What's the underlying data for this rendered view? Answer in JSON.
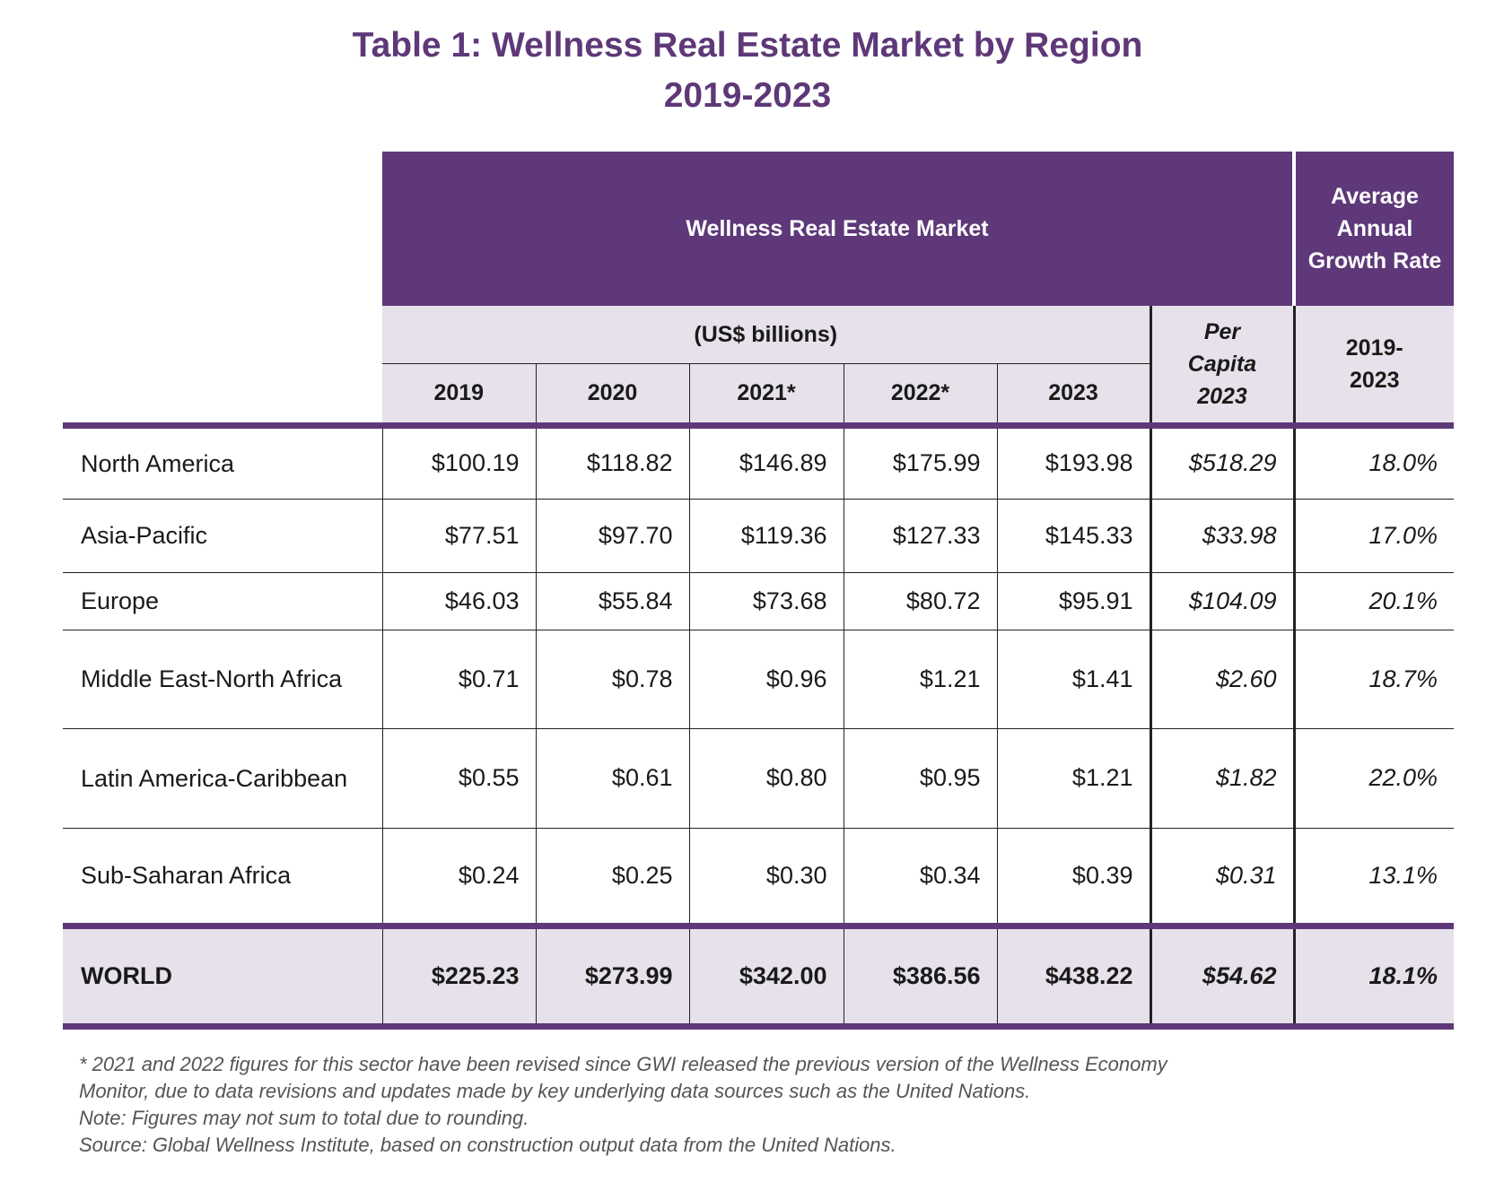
{
  "title": {
    "line1": "Table 1: Wellness Real Estate Market by Region",
    "line2": "2019-2023"
  },
  "header": {
    "group": "Wellness Real Estate Market",
    "growth": "Average Annual Growth Rate",
    "units": "(US$ billions)",
    "per_capita": "Per Capita 2023",
    "growth_period": "2019-2023",
    "years": [
      "2019",
      "2020",
      "2021*",
      "2022*",
      "2023"
    ]
  },
  "rows": [
    {
      "region": "North America",
      "values": [
        "$100.19",
        "$118.82",
        "$146.89",
        "$175.99",
        "$193.98"
      ],
      "per_capita": "$518.29",
      "growth": "18.0%"
    },
    {
      "region": "Asia-Pacific",
      "values": [
        "$77.51",
        "$97.70",
        "$119.36",
        "$127.33",
        "$145.33"
      ],
      "per_capita": "$33.98",
      "growth": "17.0%"
    },
    {
      "region": "Europe",
      "values": [
        "$46.03",
        "$55.84",
        "$73.68",
        "$80.72",
        "$95.91"
      ],
      "per_capita": "$104.09",
      "growth": "20.1%"
    },
    {
      "region": "Middle East-North Africa",
      "values": [
        "$0.71",
        "$0.78",
        "$0.96",
        "$1.21",
        "$1.41"
      ],
      "per_capita": "$2.60",
      "growth": "18.7%"
    },
    {
      "region": "Latin America-Caribbean",
      "values": [
        "$0.55",
        "$0.61",
        "$0.80",
        "$0.95",
        "$1.21"
      ],
      "per_capita": "$1.82",
      "growth": "22.0%"
    },
    {
      "region": "Sub-Saharan Africa",
      "values": [
        "$0.24",
        "$0.25",
        "$0.30",
        "$0.34",
        "$0.39"
      ],
      "per_capita": "$0.31",
      "growth": "13.1%"
    }
  ],
  "world": {
    "region": "WORLD",
    "values": [
      "$225.23",
      "$273.99",
      "$342.00",
      "$386.56",
      "$438.22"
    ],
    "per_capita": "$54.62",
    "growth": "18.1%"
  },
  "footnotes": [
    "* 2021 and 2022 figures for this sector have been revised since GWI released the previous version of the Wellness Economy",
    "Monitor, due to data revisions and updates made by key underlying data sources such as the United Nations.",
    "Note: Figures may not sum to total due to rounding.",
    "Source: Global Wellness Institute, based on construction output data from the United Nations."
  ],
  "colors": {
    "accent": "#5e3878",
    "header_bg": "#e6e1ea"
  }
}
